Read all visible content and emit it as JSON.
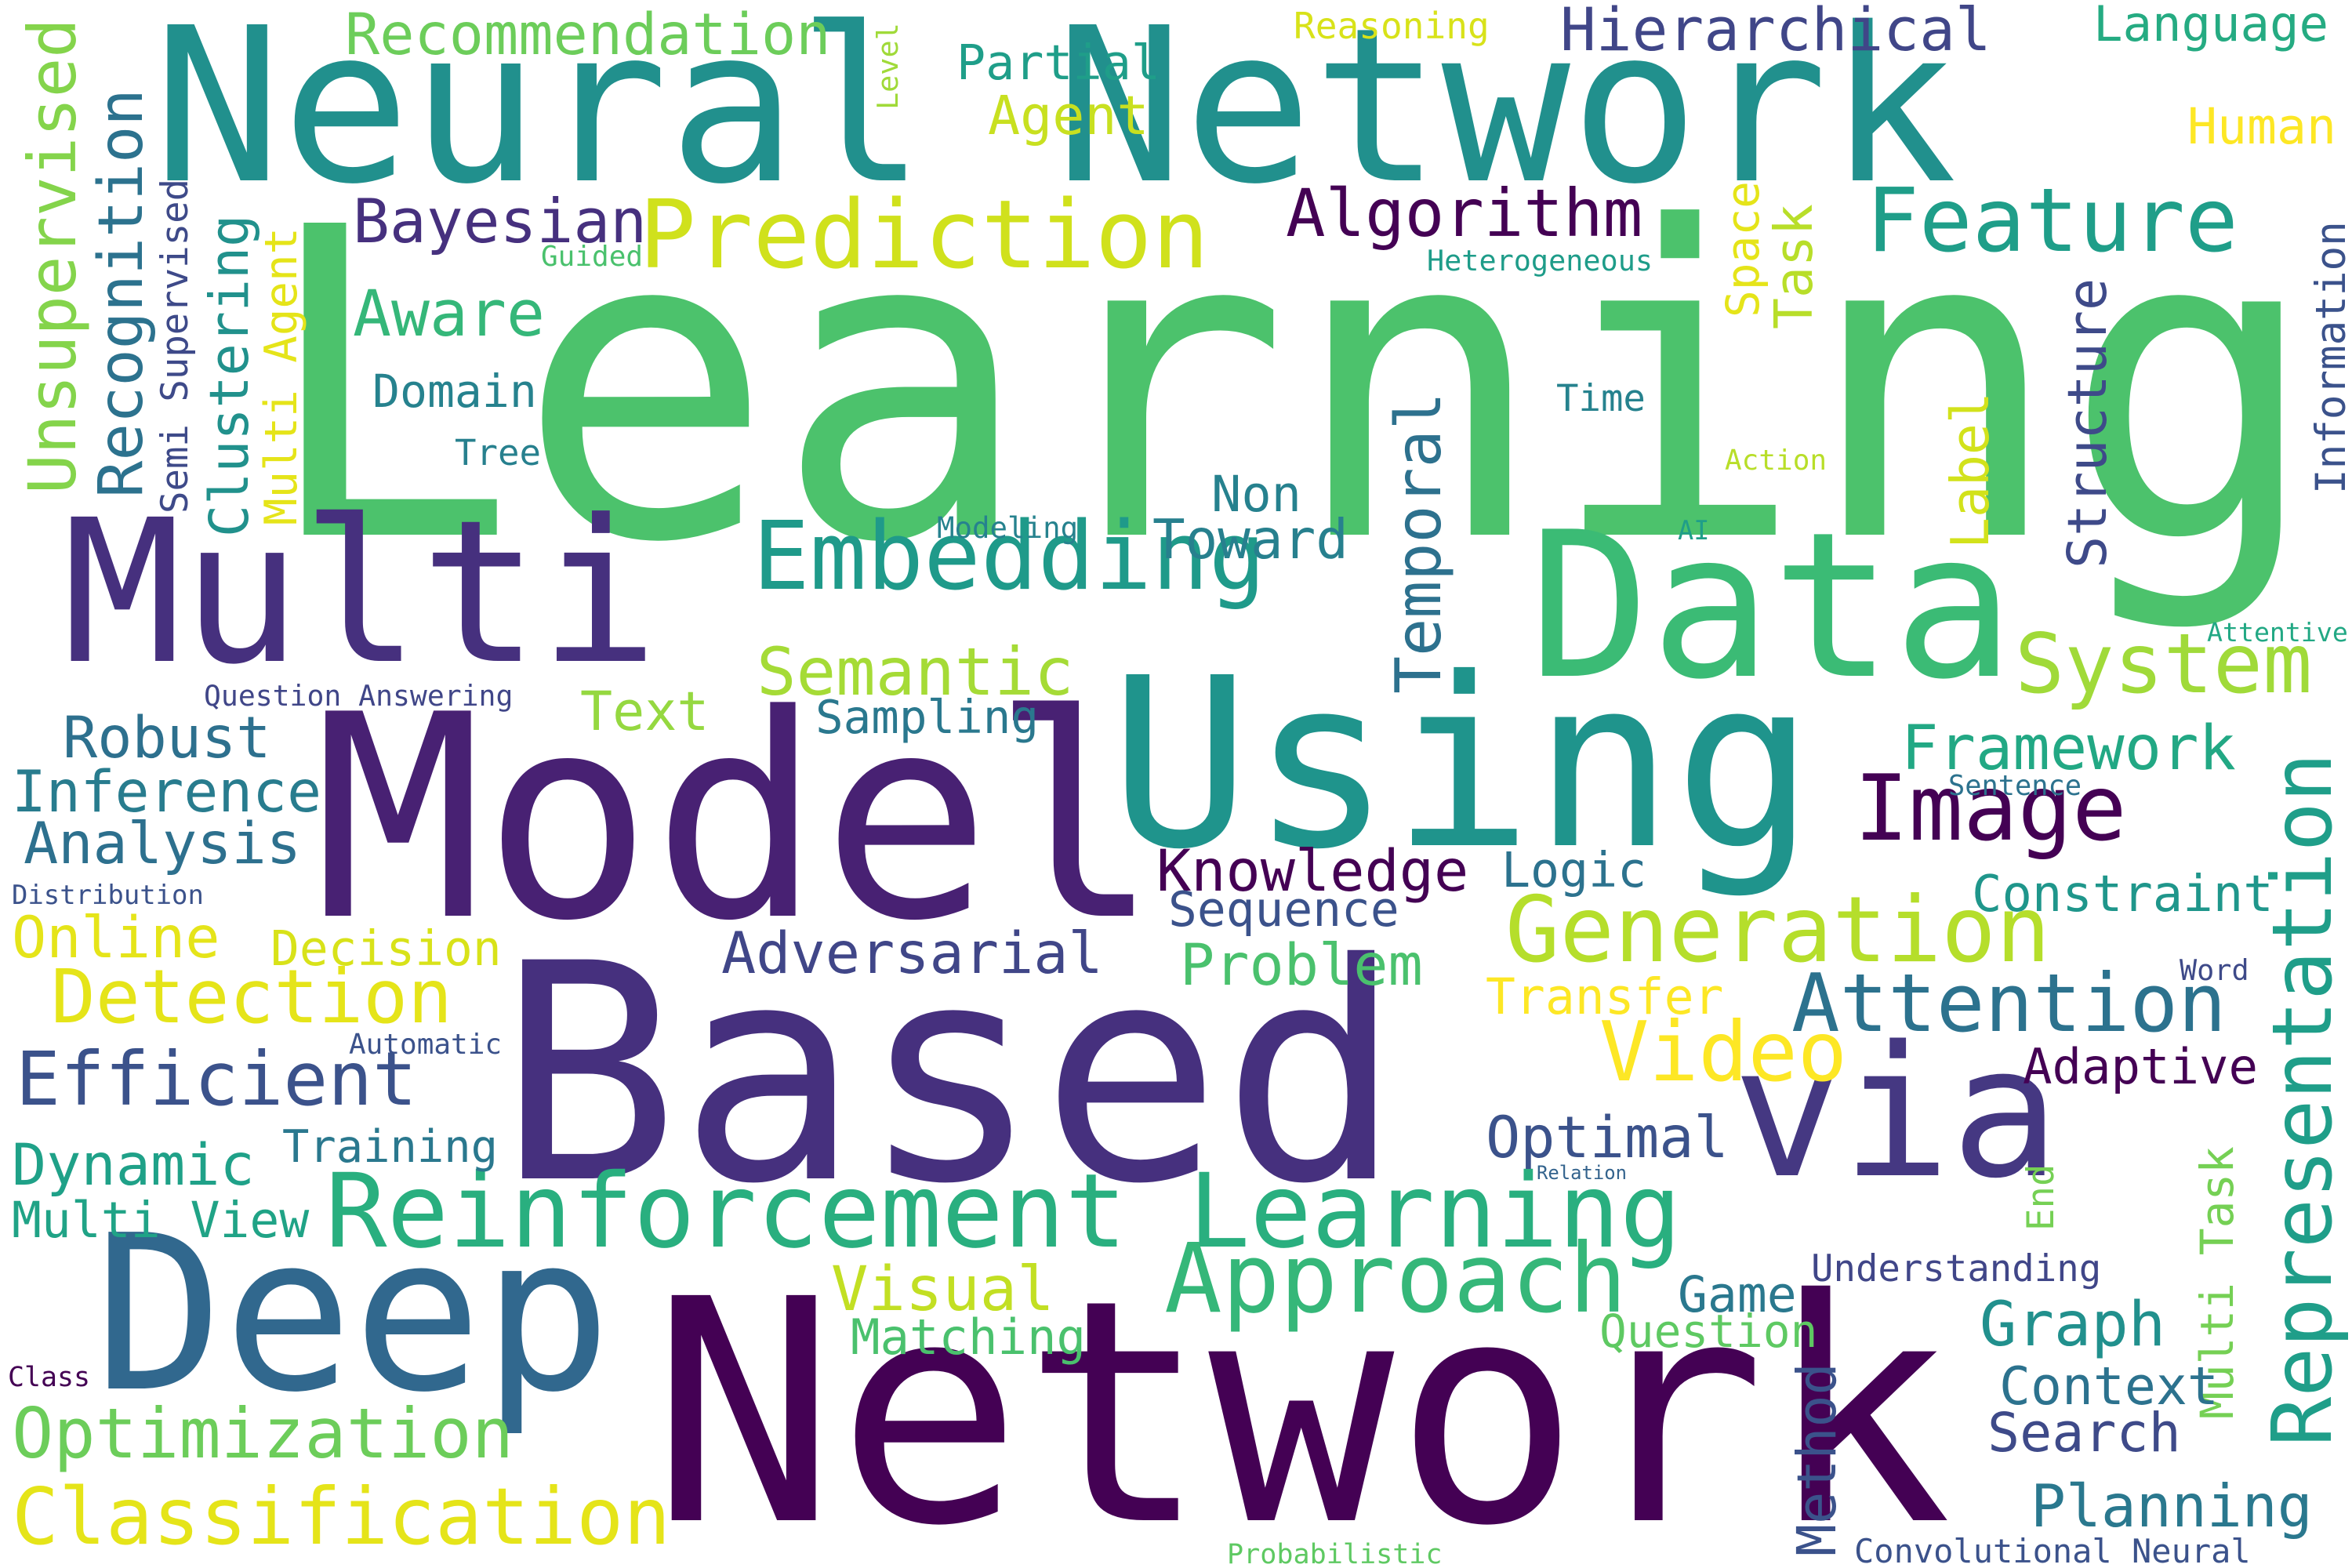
{
  "words": [
    {
      "text": "Learning",
      "color": "#4cc26c"
    },
    {
      "text": "Neural Network",
      "color": "#21908d"
    },
    {
      "text": "Network",
      "color": "#440154"
    },
    {
      "text": "Based",
      "color": "#46307e"
    },
    {
      "text": "Model",
      "color": "#482173"
    },
    {
      "text": "Using",
      "color": "#1f948c"
    },
    {
      "text": "via",
      "color": "#453882"
    },
    {
      "text": "Multi",
      "color": "#46307e"
    },
    {
      "text": "Data",
      "color": "#3bbb75"
    },
    {
      "text": "Deep",
      "color": "#31688e"
    },
    {
      "text": "Reinforcement Learning",
      "color": "#29af7f"
    },
    {
      "text": "Prediction",
      "color": "#d0e11c"
    },
    {
      "text": "Embedding",
      "color": "#1f9a8a"
    },
    {
      "text": "Approach",
      "color": "#35b779"
    },
    {
      "text": "Generation",
      "color": "#b5de2b"
    },
    {
      "text": "Feature",
      "color": "#1f9e89"
    },
    {
      "text": "Image",
      "color": "#440154"
    },
    {
      "text": "System",
      "color": "#a0da39"
    },
    {
      "text": "Attention",
      "color": "#2c728e"
    },
    {
      "text": "Representation",
      "color": "#1f9e89"
    },
    {
      "text": "Classification",
      "color": "#e5e419"
    },
    {
      "text": "Optimization",
      "color": "#6ccd5a"
    },
    {
      "text": "Efficient",
      "color": "#3b528b"
    },
    {
      "text": "Detection",
      "color": "#e5e419"
    },
    {
      "text": "Video",
      "color": "#fde725"
    },
    {
      "text": "Recommendation",
      "color": "#6ccd5a"
    },
    {
      "text": "Hierarchical",
      "color": "#404688"
    },
    {
      "text": "Algorithm",
      "color": "#440154"
    },
    {
      "text": "Bayesian",
      "color": "#46307e"
    },
    {
      "text": "Unsupervised",
      "color": "#84d44b"
    },
    {
      "text": "Recognition",
      "color": "#2c728e"
    },
    {
      "text": "Clustering",
      "color": "#21918c"
    },
    {
      "text": "Multi Agent",
      "color": "#e5e419"
    },
    {
      "text": "Semi Supervised",
      "color": "#3e4a89"
    },
    {
      "text": "Aware",
      "color": "#35b779"
    },
    {
      "text": "Domain",
      "color": "#26828e"
    },
    {
      "text": "Tree",
      "color": "#27808e"
    },
    {
      "text": "Partial",
      "color": "#1f9e89"
    },
    {
      "text": "Agent",
      "color": "#c8e020"
    },
    {
      "text": "Level",
      "color": "#a0da39"
    },
    {
      "text": "Reasoning",
      "color": "#d8e219"
    },
    {
      "text": "Language",
      "color": "#25ab82"
    },
    {
      "text": "Human",
      "color": "#fde725"
    },
    {
      "text": "Information",
      "color": "#3b528b"
    },
    {
      "text": "Guided",
      "color": "#4ac16d"
    },
    {
      "text": "Heterogeneous",
      "color": "#1e9c89"
    },
    {
      "text": "Space",
      "color": "#e5e419"
    },
    {
      "text": "Task",
      "color": "#b8de29"
    },
    {
      "text": "Time",
      "color": "#26828e"
    },
    {
      "text": "Action",
      "color": "#b8de29"
    },
    {
      "text": "Structure",
      "color": "#3e4a89"
    },
    {
      "text": "Label",
      "color": "#d2e21b"
    },
    {
      "text": "Temporal",
      "color": "#2d718e"
    },
    {
      "text": "Non",
      "color": "#26818e"
    },
    {
      "text": "Toward",
      "color": "#27808e"
    },
    {
      "text": "Modeling",
      "color": "#26828e"
    },
    {
      "text": "AI",
      "color": "#1f9e89"
    },
    {
      "text": "Semantic",
      "color": "#a5db36"
    },
    {
      "text": "Text",
      "color": "#95d840"
    },
    {
      "text": "Sampling",
      "color": "#2a788e"
    },
    {
      "text": "Question Answering",
      "color": "#404688"
    },
    {
      "text": "Robust",
      "color": "#2d708e"
    },
    {
      "text": "Inference",
      "color": "#287c8e"
    },
    {
      "text": "Analysis",
      "color": "#2d708e"
    },
    {
      "text": "Distribution",
      "color": "#3b528b"
    },
    {
      "text": "Online",
      "color": "#e5e419"
    },
    {
      "text": "Decision",
      "color": "#d8e219"
    },
    {
      "text": "Automatic",
      "color": "#3b528b"
    },
    {
      "text": "Dynamic",
      "color": "#1fa188"
    },
    {
      "text": "Training",
      "color": "#2a788e"
    },
    {
      "text": "Multi View",
      "color": "#20a386"
    },
    {
      "text": "Class",
      "color": "#440154"
    },
    {
      "text": "Knowledge",
      "color": "#440154"
    },
    {
      "text": "Sequence",
      "color": "#3b528b"
    },
    {
      "text": "Logic",
      "color": "#2c728e"
    },
    {
      "text": "Adversarial",
      "color": "#404688"
    },
    {
      "text": "Problem",
      "color": "#4ac16d"
    },
    {
      "text": "Transfer",
      "color": "#fde725"
    },
    {
      "text": "Optimal",
      "color": "#3b528b"
    },
    {
      "text": "Relation",
      "color": "#33638d"
    },
    {
      "text": "Framework",
      "color": "#22a884"
    },
    {
      "text": "Sentence",
      "color": "#2c728e"
    },
    {
      "text": "Constraint",
      "color": "#1f968b"
    },
    {
      "text": "Word",
      "color": "#3e4a89"
    },
    {
      "text": "Adaptive",
      "color": "#440154"
    },
    {
      "text": "Attentive",
      "color": "#22a884"
    },
    {
      "text": "End",
      "color": "#75d054"
    },
    {
      "text": "Multi Task",
      "color": "#75d054"
    },
    {
      "text": "Visual",
      "color": "#c2df23"
    },
    {
      "text": "Matching",
      "color": "#4ac16d"
    },
    {
      "text": "Game",
      "color": "#2a788e"
    },
    {
      "text": "Understanding",
      "color": "#404688"
    },
    {
      "text": "Question",
      "color": "#5ec962"
    },
    {
      "text": "Graph",
      "color": "#21908d"
    },
    {
      "text": "Context",
      "color": "#2c728e"
    },
    {
      "text": "Search",
      "color": "#3e4a89"
    },
    {
      "text": "Method",
      "color": "#3b528b"
    },
    {
      "text": "Planning",
      "color": "#2a788e"
    },
    {
      "text": "Convolutional Neural",
      "color": "#3b528b"
    },
    {
      "text": "Probabilistic",
      "color": "#5ec962"
    }
  ]
}
